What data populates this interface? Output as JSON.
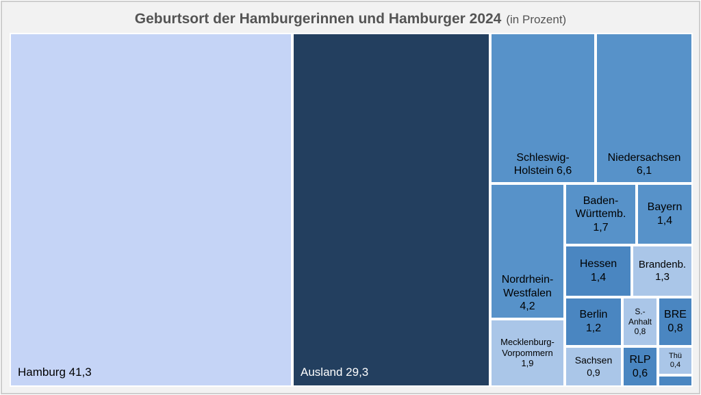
{
  "title": {
    "main": "Geburtsort der Hamburgerinnen und Hamburger 2024",
    "suffix": "(in Prozent)"
  },
  "colors": {
    "page_background": "#f2f2f2",
    "page_border": "#cdcdcd",
    "panel_background": "#ffffff",
    "title_text": "#545454",
    "shade_lightest": "#c5d4f6",
    "shade_darkest": "#233f5f",
    "shade_medium": "#5792c9",
    "shade_medium_dark": "#4a86c1",
    "shade_light": "#aac6e8"
  },
  "chart_data": {
    "type": "treemap",
    "title": "Geburtsort der Hamburgerinnen und Hamburger 2024",
    "unit": "in Prozent",
    "items": [
      {
        "name": "Hamburg",
        "value": 41.3,
        "display": "Hamburg 41,3",
        "color": "#c5d4f6",
        "text_color": "#000000"
      },
      {
        "name": "Ausland",
        "value": 29.3,
        "display": "Ausland 29,3",
        "color": "#233f5f",
        "text_color": "#ffffff"
      },
      {
        "name": "Schleswig-Holstein",
        "value": 6.6,
        "display": "Schleswig-\nHolstein 6,6",
        "color": "#5792c9",
        "text_color": "#000000"
      },
      {
        "name": "Niedersachsen",
        "value": 6.1,
        "display": "Niedersachsen\n6,1",
        "color": "#5792c9",
        "text_color": "#000000"
      },
      {
        "name": "Nordrhein-Westfalen",
        "value": 4.2,
        "display": "Nordrhein-\nWestfalen\n4,2",
        "color": "#5792c9",
        "text_color": "#000000"
      },
      {
        "name": "Baden-Württemb.",
        "value": 1.7,
        "display": "Baden-\nWürttemb.\n1,7",
        "color": "#5792c9",
        "text_color": "#000000"
      },
      {
        "name": "Bayern",
        "value": 1.4,
        "display": "Bayern\n1,4",
        "color": "#5792c9",
        "text_color": "#000000"
      },
      {
        "name": "Hessen",
        "value": 1.4,
        "display": "Hessen\n1,4",
        "color": "#4a86c1",
        "text_color": "#000000"
      },
      {
        "name": "Brandenb.",
        "value": 1.3,
        "display": "Brandenb.\n1,3",
        "color": "#aac6e8",
        "text_color": "#000000"
      },
      {
        "name": "Berlin",
        "value": 1.2,
        "display": "Berlin\n1,2",
        "color": "#4a86c1",
        "text_color": "#000000"
      },
      {
        "name": "S.-Anhalt",
        "value": 0.8,
        "display": "S.-\nAnhalt\n0,8",
        "color": "#aac6e8",
        "text_color": "#000000"
      },
      {
        "name": "BRE",
        "value": 0.8,
        "display": "BRE\n0,8",
        "color": "#4a86c1",
        "text_color": "#000000"
      },
      {
        "name": "Mecklenburg-Vorpommern",
        "value": 1.9,
        "display": "Mecklenburg-\nVorpommern\n1,9",
        "color": "#aac6e8",
        "text_color": "#000000"
      },
      {
        "name": "Sachsen",
        "value": 0.9,
        "display": "Sachsen\n0,9",
        "color": "#aac6e8",
        "text_color": "#000000"
      },
      {
        "name": "RLP",
        "value": 0.6,
        "display": "RLP\n0,6",
        "color": "#4a86c1",
        "text_color": "#000000"
      },
      {
        "name": "Thü",
        "value": 0.4,
        "display": "Thü\n0,4",
        "color": "#aac6e8",
        "text_color": "#000000"
      },
      {
        "name": "unlabeled",
        "display": "",
        "color": "#4a86c1",
        "text_color": "#000000"
      }
    ]
  }
}
